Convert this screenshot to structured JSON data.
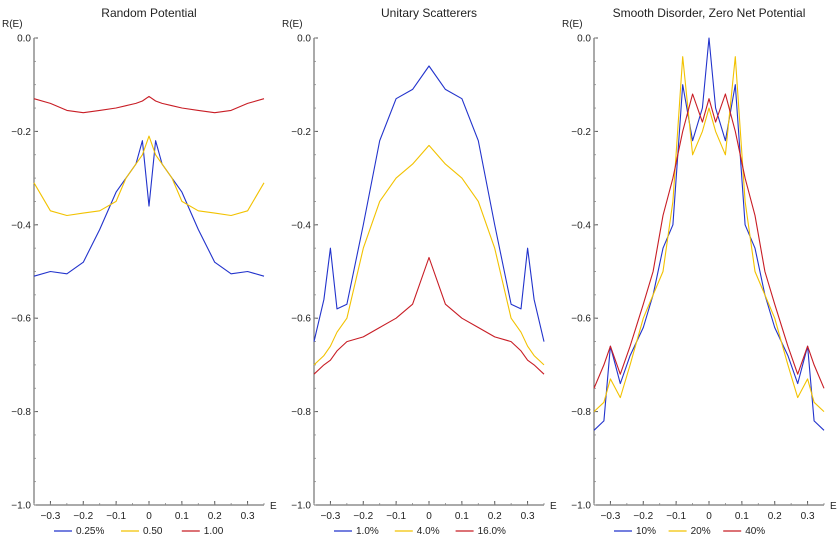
{
  "chart_data": [
    {
      "type": "line",
      "title": "Random Potential",
      "xlabel": "E",
      "ylabel": "R(E)",
      "xlim": [
        -0.35,
        0.35
      ],
      "ylim": [
        -1.0,
        0.0
      ],
      "xticks": [
        "-0.3",
        "-0.2",
        "-0.1",
        "0",
        "0.1",
        "0.2",
        "0.3"
      ],
      "yticks": [
        "0.0",
        "-0.2",
        "-0.4",
        "-0.6",
        "-0.8",
        "-1.0"
      ],
      "x": [
        -0.35,
        -0.3,
        -0.25,
        -0.2,
        -0.15,
        -0.1,
        -0.07,
        -0.04,
        -0.02,
        0,
        0.02,
        0.04,
        0.07,
        0.1,
        0.15,
        0.2,
        0.25,
        0.3,
        0.35
      ],
      "legend": {
        "position": "bottom"
      },
      "series": [
        {
          "name": "0.25%",
          "color": "#2233cc",
          "values": [
            -0.51,
            -0.5,
            -0.505,
            -0.48,
            -0.41,
            -0.33,
            -0.3,
            -0.27,
            -0.22,
            -0.36,
            -0.22,
            -0.27,
            -0.3,
            -0.33,
            -0.41,
            -0.48,
            -0.505,
            -0.5,
            -0.51
          ]
        },
        {
          "name": "0.50",
          "color": "#f2c200",
          "values": [
            -0.31,
            -0.37,
            -0.38,
            -0.375,
            -0.37,
            -0.35,
            -0.3,
            -0.27,
            -0.25,
            -0.21,
            -0.25,
            -0.27,
            -0.3,
            -0.35,
            -0.37,
            -0.375,
            -0.38,
            -0.37,
            -0.31
          ]
        },
        {
          "name": "1.00",
          "color": "#c81d25",
          "values": [
            -0.13,
            -0.14,
            -0.155,
            -0.16,
            -0.155,
            -0.15,
            -0.145,
            -0.14,
            -0.135,
            -0.125,
            -0.135,
            -0.14,
            -0.145,
            -0.15,
            -0.155,
            -0.16,
            -0.155,
            -0.14,
            -0.13
          ]
        }
      ]
    },
    {
      "type": "line",
      "title": "Unitary Scatterers",
      "xlabel": "E",
      "ylabel": "R(E)",
      "xlim": [
        -0.35,
        0.35
      ],
      "ylim": [
        -1.0,
        0.0
      ],
      "xticks": [
        "-0.3",
        "-0.2",
        "-0.1",
        "0",
        "0.1",
        "0.2",
        "0.3"
      ],
      "yticks": [
        "0.0",
        "-0.2",
        "-0.4",
        "-0.6",
        "-0.8",
        "-1.0"
      ],
      "x": [
        -0.35,
        -0.32,
        -0.3,
        -0.28,
        -0.25,
        -0.2,
        -0.15,
        -0.1,
        -0.05,
        0,
        0.05,
        0.1,
        0.15,
        0.2,
        0.25,
        0.28,
        0.3,
        0.32,
        0.35
      ],
      "legend": {
        "position": "bottom"
      },
      "series": [
        {
          "name": "1.0%",
          "color": "#2233cc",
          "values": [
            -0.65,
            -0.56,
            -0.45,
            -0.58,
            -0.57,
            -0.4,
            -0.22,
            -0.13,
            -0.11,
            -0.06,
            -0.11,
            -0.13,
            -0.22,
            -0.4,
            -0.57,
            -0.58,
            -0.45,
            -0.56,
            -0.65
          ]
        },
        {
          "name": "4.0%",
          "color": "#f2c200",
          "values": [
            -0.7,
            -0.68,
            -0.66,
            -0.63,
            -0.6,
            -0.45,
            -0.35,
            -0.3,
            -0.27,
            -0.23,
            -0.27,
            -0.3,
            -0.35,
            -0.45,
            -0.6,
            -0.63,
            -0.66,
            -0.68,
            -0.7
          ]
        },
        {
          "name": "16.0%",
          "color": "#c81d25",
          "values": [
            -0.72,
            -0.7,
            -0.69,
            -0.67,
            -0.65,
            -0.64,
            -0.62,
            -0.6,
            -0.57,
            -0.47,
            -0.57,
            -0.6,
            -0.62,
            -0.64,
            -0.65,
            -0.67,
            -0.69,
            -0.7,
            -0.72
          ]
        }
      ]
    },
    {
      "type": "line",
      "title": "Smooth Disorder, Zero Net Potential",
      "xlabel": "E",
      "ylabel": "R(E)",
      "xlim": [
        -0.35,
        0.35
      ],
      "ylim": [
        -1.0,
        0.0
      ],
      "xticks": [
        "-0.3",
        "-0.2",
        "-0.1",
        "0",
        "0.1",
        "0.2",
        "0.3"
      ],
      "yticks": [
        "0.0",
        "-0.2",
        "-0.4",
        "-0.6",
        "-0.8",
        "-1.0"
      ],
      "x": [
        -0.35,
        -0.32,
        -0.3,
        -0.27,
        -0.24,
        -0.2,
        -0.17,
        -0.14,
        -0.11,
        -0.08,
        -0.05,
        -0.02,
        0,
        0.02,
        0.05,
        0.08,
        0.11,
        0.14,
        0.17,
        0.2,
        0.24,
        0.27,
        0.3,
        0.32,
        0.35
      ],
      "legend": {
        "position": "bottom"
      },
      "series": [
        {
          "name": "10%",
          "color": "#2233cc",
          "values": [
            -0.84,
            -0.82,
            -0.66,
            -0.74,
            -0.68,
            -0.62,
            -0.55,
            -0.45,
            -0.4,
            -0.1,
            -0.22,
            -0.15,
            0.0,
            -0.15,
            -0.22,
            -0.1,
            -0.4,
            -0.45,
            -0.55,
            -0.62,
            -0.68,
            -0.74,
            -0.66,
            -0.82,
            -0.84
          ]
        },
        {
          "name": "20%",
          "color": "#f2c200",
          "values": [
            -0.8,
            -0.78,
            -0.73,
            -0.77,
            -0.7,
            -0.6,
            -0.55,
            -0.5,
            -0.35,
            -0.04,
            -0.25,
            -0.2,
            -0.15,
            -0.2,
            -0.25,
            -0.04,
            -0.35,
            -0.5,
            -0.55,
            -0.6,
            -0.7,
            -0.77,
            -0.73,
            -0.78,
            -0.8
          ]
        },
        {
          "name": "40%",
          "color": "#c81d25",
          "values": [
            -0.75,
            -0.7,
            -0.66,
            -0.72,
            -0.66,
            -0.57,
            -0.5,
            -0.38,
            -0.3,
            -0.2,
            -0.12,
            -0.18,
            -0.13,
            -0.18,
            -0.12,
            -0.2,
            -0.3,
            -0.38,
            -0.5,
            -0.57,
            -0.66,
            -0.72,
            -0.66,
            -0.7,
            -0.75
          ]
        }
      ]
    }
  ]
}
